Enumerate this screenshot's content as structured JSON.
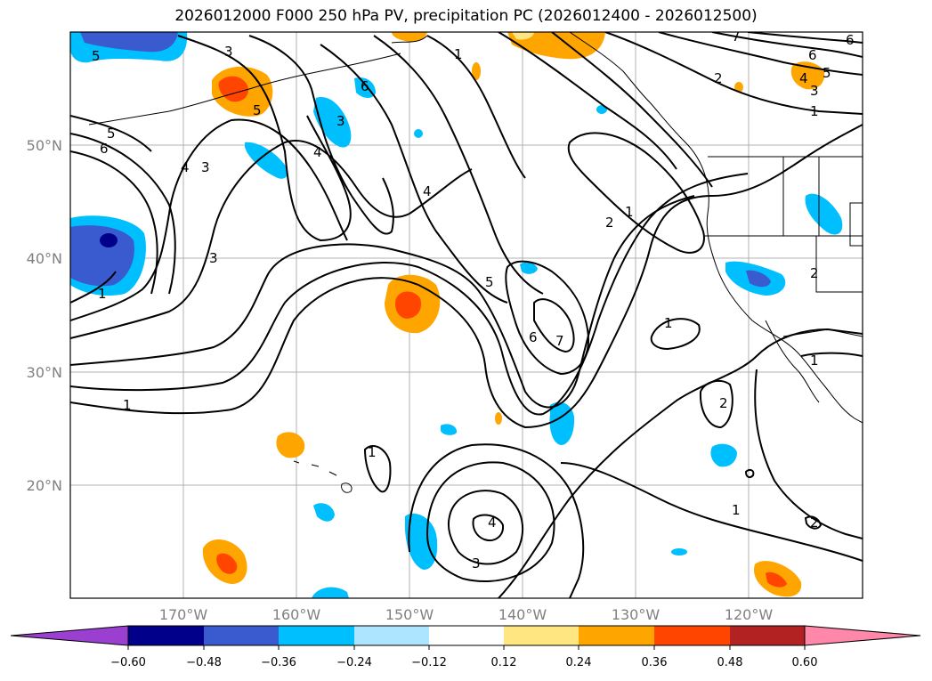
{
  "title": "2026012000 F000 250 hPa PV, precipitation PC (2026012400 - 2026012500)",
  "map": {
    "lon_labels": [
      "170°W",
      "160°W",
      "150°W",
      "140°W",
      "130°W",
      "120°W"
    ],
    "lat_labels": [
      "50°N",
      "40°N",
      "30°N",
      "20°N"
    ],
    "lon_range": [
      -180,
      -110
    ],
    "lat_range": [
      10,
      60
    ],
    "grid": true,
    "contour_labels": [
      "1",
      "2",
      "3",
      "4",
      "5",
      "6",
      "7"
    ]
  },
  "colorbar": {
    "tick_labels": [
      "−0.60",
      "−0.48",
      "−0.36",
      "−0.24",
      "−0.12",
      "0.12",
      "0.24",
      "0.36",
      "0.48",
      "0.60"
    ],
    "colors": [
      "#9b3fd0",
      "#00008b",
      "#3a5bd0",
      "#00bfff",
      "#ade4ff",
      "#ffffff",
      "#ffe680",
      "#ffa500",
      "#ff4500",
      "#b22222",
      "#ff88aa",
      "#ff88aa"
    ]
  },
  "colors": {
    "neg_light": "#ade4ff",
    "neg_mid": "#00bfff",
    "neg_strong": "#3a5bd0",
    "neg_max": "#00008b",
    "pos_light": "#ffe680",
    "pos_mid": "#ffa500",
    "pos_strong": "#ff4500",
    "pos_max": "#b22222"
  }
}
